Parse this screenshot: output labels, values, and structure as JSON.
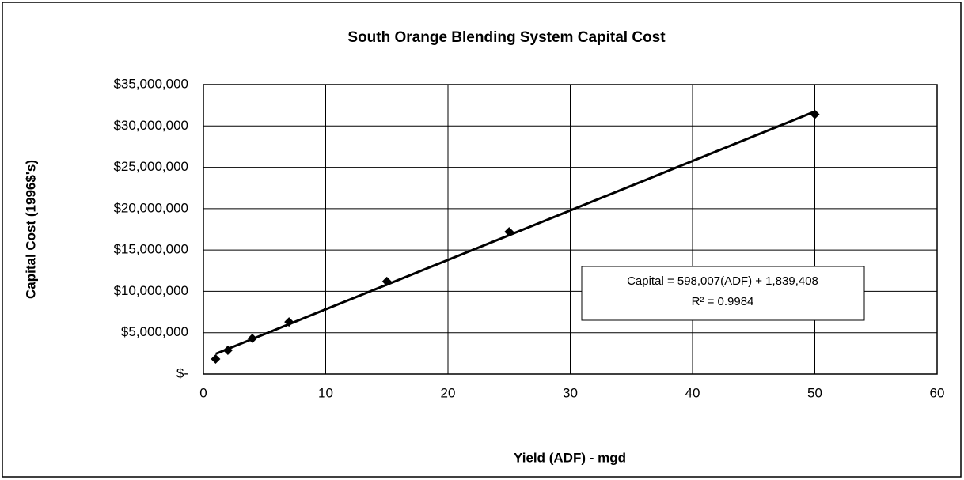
{
  "chart_data": {
    "type": "scatter",
    "title": "South Orange Blending System Capital Cost",
    "x_label": "Yield (ADF) - mgd",
    "y_label": "Capital Cost (1996$'s)",
    "x": [
      1,
      2,
      4,
      7,
      15,
      25,
      50
    ],
    "values": [
      1820000,
      2870000,
      4300000,
      6300000,
      11200000,
      17200000,
      31400000
    ],
    "color": "#000000",
    "trendline": "linear",
    "annotations": [
      "Capital = 598,007(ADF) + 1,839,408",
      "R² = 0.9984"
    ],
    "xlim": [
      0,
      60
    ],
    "xticks": [
      0,
      10,
      20,
      30,
      40,
      50,
      60
    ],
    "ylim": [
      0,
      35000000
    ],
    "yticks": [
      {
        "value": 0,
        "label": "$-"
      },
      {
        "value": 5000000,
        "label": "$5,000,000"
      },
      {
        "value": 10000000,
        "label": "$10,000,000"
      },
      {
        "value": 15000000,
        "label": "$15,000,000"
      },
      {
        "value": 20000000,
        "label": "$20,000,000"
      },
      {
        "value": 25000000,
        "label": "$25,000,000"
      },
      {
        "value": 30000000,
        "label": "$30,000,000"
      },
      {
        "value": 35000000,
        "label": "$35,000,000"
      }
    ],
    "grid": true
  }
}
